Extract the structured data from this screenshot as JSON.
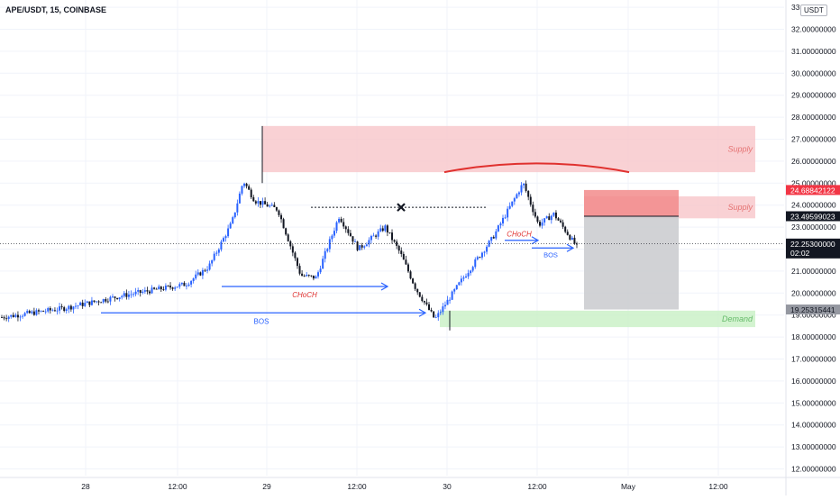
{
  "symbol_title": "APE/USDT, 15, COINBASE",
  "currency": "USDT",
  "colors": {
    "bull": "#2962ff",
    "bear": "#131722",
    "supply_zone": "#f7c5c9",
    "demand_zone": "#c8f0c4",
    "annotation_blue": "#2962ff",
    "annotation_red": "#e0312f"
  },
  "chart_data": {
    "type": "candlestick",
    "y_range": [
      11.8,
      33.5
    ],
    "y_ticks": [
      {
        "value": 12,
        "label": "12.00000000"
      },
      {
        "value": 13,
        "label": "13.00000000"
      },
      {
        "value": 14,
        "label": "14.00000000"
      },
      {
        "value": 15,
        "label": "15.00000000"
      },
      {
        "value": 16,
        "label": "16.00000000"
      },
      {
        "value": 17,
        "label": "17.00000000"
      },
      {
        "value": 18,
        "label": "18.00000000"
      },
      {
        "value": 19,
        "label": "19.00000000"
      },
      {
        "value": 20,
        "label": "20.00000000"
      },
      {
        "value": 21,
        "label": "21.00000000"
      },
      {
        "value": 22,
        "label": "22.00000000"
      },
      {
        "value": 23,
        "label": "23.00000000"
      },
      {
        "value": 24,
        "label": "24.00000000"
      },
      {
        "value": 25,
        "label": "25.00000000"
      },
      {
        "value": 26,
        "label": "26.00000000"
      },
      {
        "value": 27,
        "label": "27.00000000"
      },
      {
        "value": 28,
        "label": "28.00000000"
      },
      {
        "value": 29,
        "label": "29.00000000"
      },
      {
        "value": 30,
        "label": "30.00000000"
      },
      {
        "value": 31,
        "label": "31.00000000"
      },
      {
        "value": 32,
        "label": "32.00000000"
      },
      {
        "value": 33,
        "label": "33."
      }
    ],
    "x_ticks": [
      "28",
      "12:00",
      "29",
      "12:00",
      "30",
      "12:00",
      "May",
      "12:00"
    ],
    "price_path": [
      [
        0,
        18.9
      ],
      [
        0.08,
        19.3
      ],
      [
        0.16,
        19.9
      ],
      [
        0.24,
        20.4
      ],
      [
        0.27,
        21.2
      ],
      [
        0.3,
        23.2
      ],
      [
        0.315,
        25.1
      ],
      [
        0.33,
        24.2
      ],
      [
        0.36,
        23.8
      ],
      [
        0.39,
        20.8
      ],
      [
        0.41,
        20.7
      ],
      [
        0.44,
        23.5
      ],
      [
        0.465,
        22.0
      ],
      [
        0.5,
        23.0
      ],
      [
        0.52,
        21.8
      ],
      [
        0.54,
        20.2
      ],
      [
        0.565,
        18.8
      ],
      [
        0.6,
        20.6
      ],
      [
        0.64,
        22.5
      ],
      [
        0.68,
        25.0
      ],
      [
        0.7,
        23.1
      ],
      [
        0.72,
        23.6
      ],
      [
        0.75,
        22.1
      ]
    ],
    "price_labels": [
      {
        "value": 24.68842122,
        "label": "24.68842122",
        "style": "red"
      },
      {
        "value": 23.49599023,
        "label": "23.49599023",
        "style": "dark"
      },
      {
        "value": 22.253,
        "label": "22.25300000",
        "sub": "02:02",
        "style": "dark"
      },
      {
        "value": 19.25315441,
        "label": "19.25315441",
        "style": "gray"
      }
    ],
    "zones": [
      {
        "kind": "supply",
        "label": "Supply",
        "top": 27.6,
        "bottom": 25.5
      },
      {
        "kind": "supply",
        "label": "Supply",
        "top": 24.4,
        "bottom": 23.4
      },
      {
        "kind": "demand",
        "label": "Demand",
        "top": 19.2,
        "bottom": 18.45
      }
    ],
    "position": {
      "entry": 23.49599023,
      "stop": 24.68842122,
      "target": 19.25315441
    },
    "annotations": [
      {
        "label": "CHoCH",
        "color": "red",
        "level": 20.3
      },
      {
        "label": "BOS",
        "color": "blue",
        "level": 19.1
      },
      {
        "label": "CHoCH",
        "color": "red",
        "level": 22.4
      },
      {
        "label": "BOS",
        "color": "blue",
        "level": 22.05
      }
    ],
    "dotted_level": 23.9,
    "current_price": 22.253
  }
}
